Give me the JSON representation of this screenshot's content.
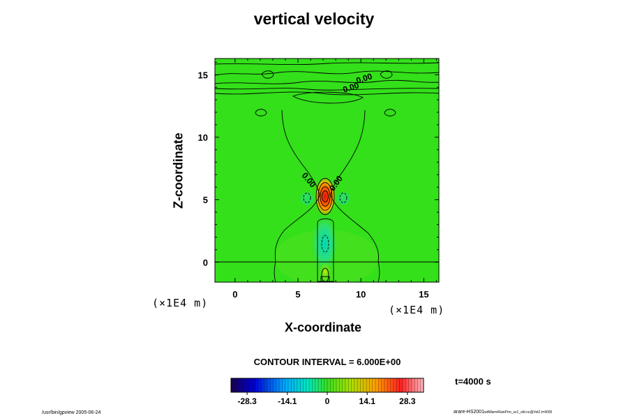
{
  "chart_data": {
    "type": "heatmap",
    "title": "vertical velocity",
    "xlabel": "X-coordinate",
    "ylabel": "Z-coordinate",
    "x_unit": "(×1E4 m)",
    "z_unit": "(×1E4 m)",
    "xlim": [
      -1.6,
      16.2
    ],
    "ylim": [
      -1.6,
      16.3
    ],
    "x_ticks": [
      "0",
      "5",
      "10",
      "15"
    ],
    "y_ticks": [
      "0",
      "5",
      "10",
      "15"
    ],
    "contour_interval": "CONTOUR INTERVAL = 6.000E+00",
    "contour_labels": [
      "0.00",
      "0.00",
      "0.00",
      "0.00"
    ],
    "colorbar": {
      "range": [
        -34,
        34
      ],
      "ticks": [
        "-28.3",
        "-14.1",
        "0",
        "14.1",
        "28.3"
      ]
    },
    "features": [
      {
        "kind": "updraft-core",
        "x": 7.2,
        "z": 5.2,
        "value_max": 34
      },
      {
        "kind": "downdraft",
        "x": 7.2,
        "z": 1.5,
        "value_min": -8
      },
      {
        "kind": "updraft-surface",
        "x": 7.2,
        "z": -1.3,
        "value_max": 12
      }
    ],
    "time_label": "t=4000 s"
  },
  "footer": {
    "left": "/usr/bin/gpview 2005-06-24",
    "right_main": "arare-HS2001",
    "right_sub": "witWarmRainPrm_sv1_old.nc@VelZ,t=4000"
  },
  "colors": {
    "background_field": "#33e01a",
    "contour_line": "#000000",
    "colorbar_stops": [
      "#000060",
      "#0000d0",
      "#00a0ff",
      "#00e0e0",
      "#40e040",
      "#a0e000",
      "#ffa000",
      "#ff2000",
      "#ffb0b0"
    ]
  }
}
